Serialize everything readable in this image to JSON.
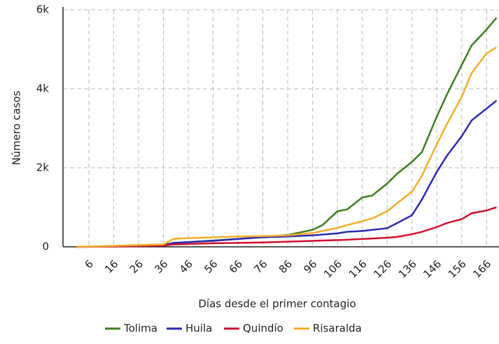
{
  "chart_data": {
    "type": "line",
    "xlabel": "Días desde el primer contagio",
    "ylabel": "Número casos",
    "x": [
      1,
      10,
      20,
      30,
      36,
      40,
      46,
      56,
      66,
      76,
      86,
      96,
      100,
      106,
      110,
      116,
      120,
      126,
      130,
      136,
      140,
      146,
      150,
      156,
      160,
      166,
      170
    ],
    "series": [
      {
        "name": "Tolima",
        "color": "#3d7f1f",
        "values": [
          0,
          10,
          30,
          50,
          60,
          90,
          120,
          160,
          200,
          250,
          300,
          430,
          550,
          900,
          950,
          1250,
          1300,
          1600,
          1850,
          2150,
          2400,
          3300,
          3850,
          4600,
          5100,
          5500,
          5800
        ]
      },
      {
        "name": "Huila",
        "color": "#2b2bb5",
        "values": [
          0,
          5,
          15,
          30,
          40,
          100,
          120,
          150,
          200,
          240,
          260,
          290,
          310,
          340,
          380,
          400,
          430,
          470,
          600,
          800,
          1200,
          1900,
          2300,
          2800,
          3200,
          3500,
          3700
        ]
      },
      {
        "name": "Quindío",
        "color": "#d0102e",
        "values": [
          0,
          5,
          10,
          20,
          30,
          60,
          70,
          90,
          100,
          110,
          130,
          150,
          160,
          170,
          180,
          200,
          210,
          230,
          250,
          320,
          380,
          500,
          600,
          700,
          850,
          920,
          1000
        ]
      },
      {
        "name": "Risaralda",
        "color": "#f5ad2b",
        "values": [
          0,
          10,
          30,
          50,
          60,
          200,
          220,
          240,
          260,
          270,
          290,
          350,
          400,
          480,
          550,
          650,
          720,
          900,
          1100,
          1400,
          1800,
          2600,
          3100,
          3800,
          4400,
          4900,
          5050
        ]
      }
    ],
    "xlim": [
      -4.4,
      171
    ],
    "xticks": [
      6,
      16,
      26,
      36,
      46,
      56,
      66,
      76,
      86,
      96,
      106,
      116,
      126,
      136,
      146,
      156,
      166
    ],
    "ylim": [
      0,
      6000
    ],
    "yticks": [
      0,
      {
        "value": 2000,
        "label": "2k"
      },
      {
        "value": 4000,
        "label": "4k"
      },
      {
        "value": 6000,
        "label": "6k"
      }
    ],
    "grid": true
  }
}
